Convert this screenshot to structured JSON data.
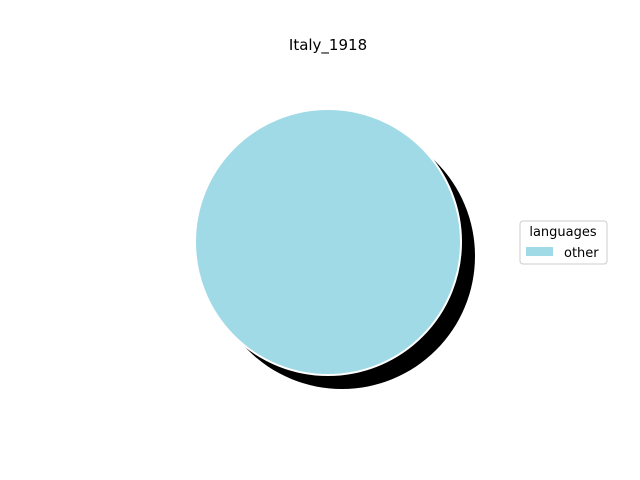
{
  "chart_data": {
    "type": "pie",
    "title": "Italy_1918",
    "slices": [
      {
        "label": "other",
        "value": 100,
        "color": "#a0dae6"
      }
    ],
    "shadow": true,
    "legend": {
      "title": "languages",
      "placement": "center-right",
      "entries": [
        "other"
      ]
    }
  }
}
